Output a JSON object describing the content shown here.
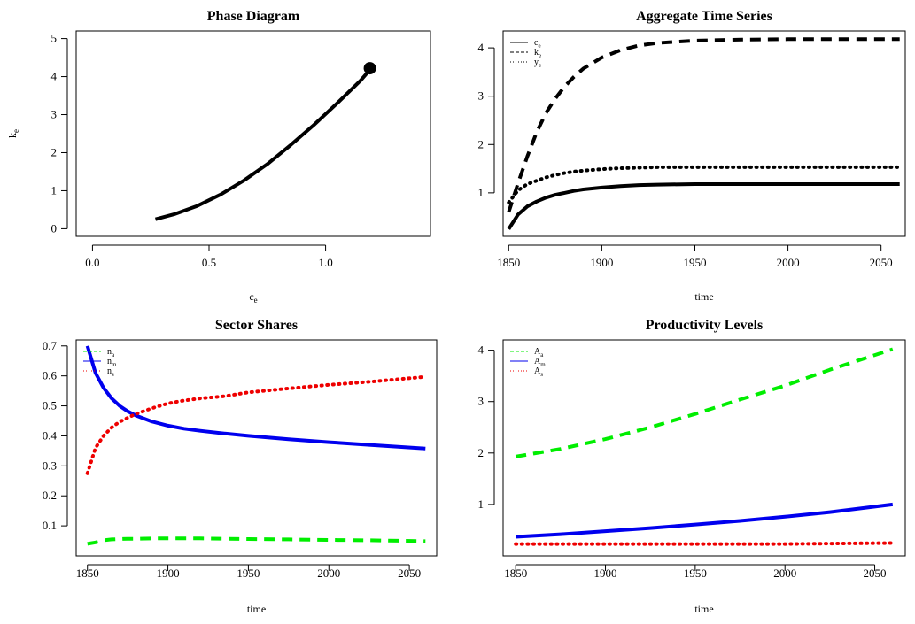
{
  "colors": {
    "green": "#00ee00",
    "blue": "#0000ee",
    "red": "#ee0000",
    "black": "#000000"
  },
  "chart_data": [
    {
      "id": "phase",
      "type": "line",
      "title": "Phase Diagram",
      "xlabel": {
        "base": "c",
        "sub": "e"
      },
      "ylabel": {
        "base": "k",
        "sub": "e"
      },
      "xlim": [
        -0.07,
        1.45
      ],
      "ylim": [
        -0.2,
        5.2
      ],
      "xticks": [
        0.0,
        0.5,
        1.0
      ],
      "xtick_labels": [
        "0.0",
        "0.5",
        "1.0"
      ],
      "yticks": [
        0,
        1,
        2,
        3,
        4,
        5
      ],
      "ytick_labels": [
        "0",
        "1",
        "2",
        "3",
        "4",
        "5"
      ],
      "series": [
        {
          "style": "solid",
          "color": "#000000",
          "x": [
            0.27,
            0.35,
            0.45,
            0.55,
            0.65,
            0.75,
            0.85,
            0.95,
            1.05,
            1.15,
            1.19
          ],
          "y": [
            0.25,
            0.38,
            0.6,
            0.9,
            1.27,
            1.7,
            2.2,
            2.73,
            3.3,
            3.9,
            4.18
          ]
        }
      ],
      "points": [
        {
          "x": 1.19,
          "y": 4.22
        }
      ]
    },
    {
      "id": "aggregate",
      "type": "line",
      "title": "Aggregate Time Series",
      "xlabel": {
        "base": "time",
        "sub": ""
      },
      "xlim": [
        1847,
        2063
      ],
      "ylim": [
        0.1,
        4.35
      ],
      "xticks": [
        1850,
        1900,
        1950,
        2000,
        2050
      ],
      "xtick_labels": [
        "1850",
        "1900",
        "1950",
        "2000",
        "2050"
      ],
      "yticks": [
        1,
        2,
        3,
        4
      ],
      "ytick_labels": [
        "1",
        "2",
        "3",
        "4"
      ],
      "legend": {
        "position": "top-left"
      },
      "x": [
        1850,
        1855,
        1860,
        1865,
        1870,
        1875,
        1880,
        1885,
        1890,
        1900,
        1910,
        1920,
        1930,
        1950,
        1975,
        2000,
        2025,
        2060
      ],
      "series": [
        {
          "name": "c",
          "sub": "e",
          "style": "solid",
          "color": "#000000",
          "values": [
            0.25,
            0.55,
            0.72,
            0.82,
            0.9,
            0.96,
            1.0,
            1.04,
            1.07,
            1.11,
            1.14,
            1.16,
            1.17,
            1.18,
            1.18,
            1.18,
            1.18,
            1.18
          ]
        },
        {
          "name": "k",
          "sub": "e",
          "style": "dashed",
          "color": "#000000",
          "values": [
            0.6,
            1.2,
            1.75,
            2.25,
            2.65,
            2.95,
            3.2,
            3.4,
            3.57,
            3.8,
            3.95,
            4.05,
            4.1,
            4.15,
            4.17,
            4.18,
            4.18,
            4.18
          ]
        },
        {
          "name": "y",
          "sub": "e",
          "style": "dotted",
          "color": "#000000",
          "values": [
            0.8,
            1.05,
            1.18,
            1.25,
            1.32,
            1.37,
            1.41,
            1.44,
            1.46,
            1.49,
            1.51,
            1.52,
            1.53,
            1.53,
            1.53,
            1.53,
            1.53,
            1.53
          ]
        }
      ]
    },
    {
      "id": "sectors",
      "type": "line",
      "title": "Sector Shares",
      "xlabel": {
        "base": "time",
        "sub": ""
      },
      "xlim": [
        1843,
        2067
      ],
      "ylim": [
        0.0,
        0.72
      ],
      "xticks": [
        1850,
        1900,
        1950,
        2000,
        2050
      ],
      "xtick_labels": [
        "1850",
        "1900",
        "1950",
        "2000",
        "2050"
      ],
      "yticks": [
        0.1,
        0.2,
        0.3,
        0.4,
        0.5,
        0.6,
        0.7
      ],
      "ytick_labels": [
        "0.1",
        "0.2",
        "0.3",
        "0.4",
        "0.5",
        "0.6",
        "0.7"
      ],
      "legend": {
        "position": "top-left"
      },
      "x": [
        1850,
        1855,
        1860,
        1865,
        1870,
        1875,
        1880,
        1890,
        1900,
        1910,
        1920,
        1935,
        1950,
        1975,
        2000,
        2025,
        2060
      ],
      "series": [
        {
          "name": "n",
          "sub": "a",
          "style": "dashed",
          "color": "#00ee00",
          "values": [
            0.04,
            0.045,
            0.052,
            0.055,
            0.056,
            0.057,
            0.057,
            0.058,
            0.058,
            0.058,
            0.058,
            0.057,
            0.056,
            0.055,
            0.053,
            0.052,
            0.049
          ]
        },
        {
          "name": "n",
          "sub": "m",
          "style": "solid",
          "color": "#0000ee",
          "values": [
            0.7,
            0.61,
            0.56,
            0.525,
            0.5,
            0.482,
            0.468,
            0.448,
            0.434,
            0.424,
            0.417,
            0.408,
            0.4,
            0.389,
            0.379,
            0.37,
            0.358
          ]
        },
        {
          "name": "n",
          "sub": "s",
          "style": "dotted",
          "color": "#ee0000",
          "values": [
            0.275,
            0.36,
            0.4,
            0.428,
            0.447,
            0.46,
            0.473,
            0.492,
            0.508,
            0.518,
            0.525,
            0.532,
            0.545,
            0.558,
            0.57,
            0.58,
            0.597
          ]
        }
      ]
    },
    {
      "id": "productivity",
      "type": "line",
      "title": "Productivity Levels",
      "xlabel": {
        "base": "time",
        "sub": ""
      },
      "xlim": [
        1843,
        2067
      ],
      "ylim": [
        0.0,
        4.2
      ],
      "xticks": [
        1850,
        1900,
        1950,
        2000,
        2050
      ],
      "xtick_labels": [
        "1850",
        "1900",
        "1950",
        "2000",
        "2050"
      ],
      "yticks": [
        1,
        2,
        3,
        4
      ],
      "ytick_labels": [
        "1",
        "2",
        "3",
        "4"
      ],
      "legend": {
        "position": "top-left"
      },
      "x": [
        1850,
        1875,
        1900,
        1925,
        1950,
        1975,
        2000,
        2025,
        2060
      ],
      "series": [
        {
          "name": "A",
          "sub": "a",
          "style": "dashed",
          "color": "#00ee00",
          "values": [
            1.93,
            2.08,
            2.27,
            2.5,
            2.76,
            3.04,
            3.31,
            3.62,
            4.02
          ]
        },
        {
          "name": "A",
          "sub": "m",
          "style": "solid",
          "color": "#0000ee",
          "values": [
            0.37,
            0.42,
            0.48,
            0.54,
            0.61,
            0.68,
            0.76,
            0.85,
            1.0
          ]
        },
        {
          "name": "A",
          "sub": "s",
          "style": "dotted",
          "color": "#ee0000",
          "values": [
            0.23,
            0.23,
            0.23,
            0.23,
            0.23,
            0.23,
            0.23,
            0.24,
            0.25
          ]
        }
      ]
    }
  ]
}
